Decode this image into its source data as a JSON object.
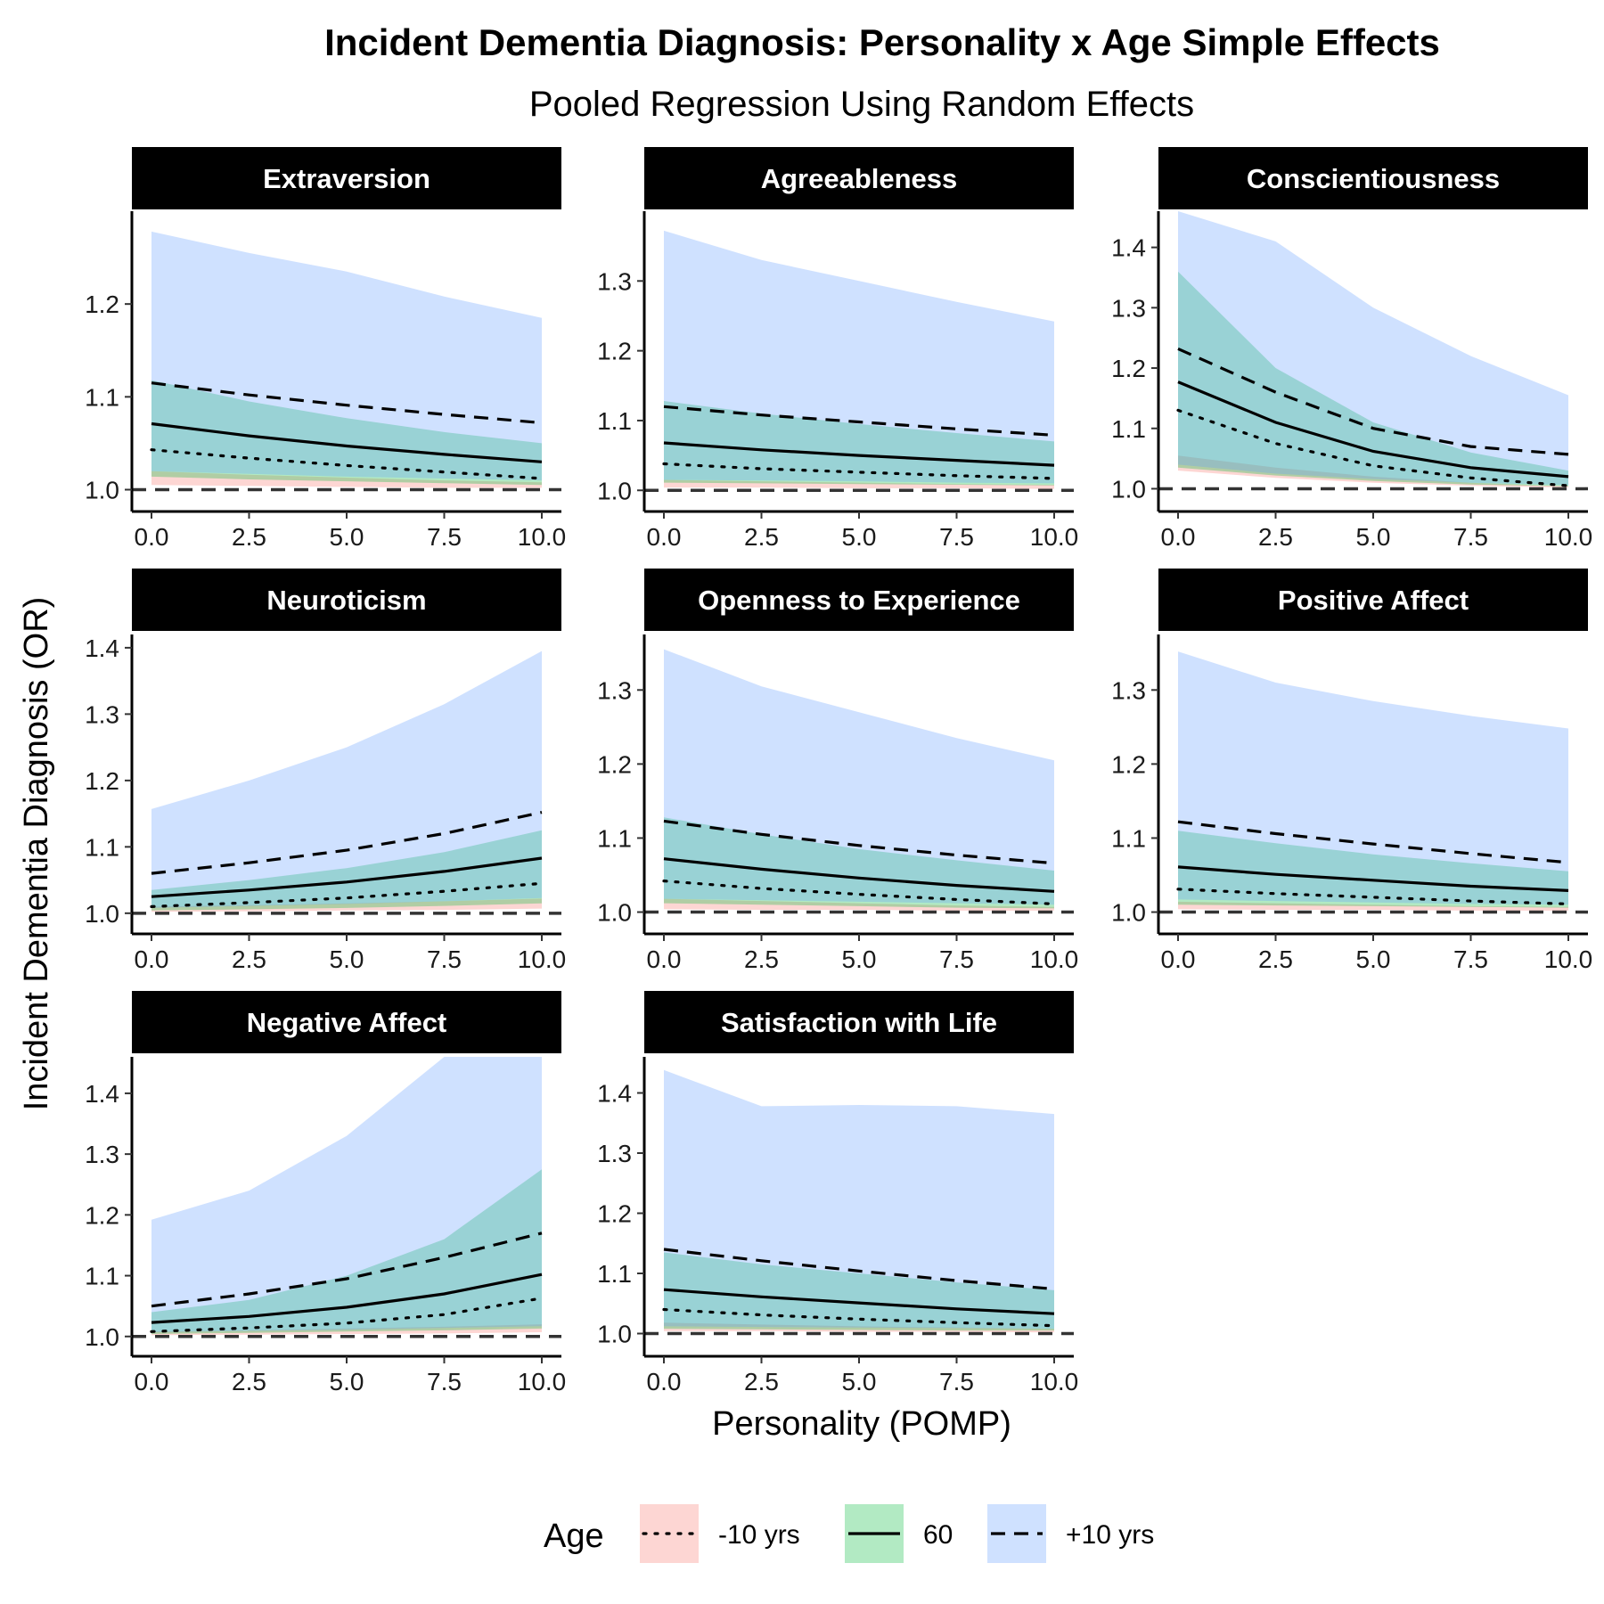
{
  "title": "Incident Dementia Diagnosis: Personality x Age Simple Effects",
  "subtitle": "Pooled Regression Using Random Effects",
  "x_axis_title": "Personality (POMP)",
  "y_axis_title": "Incident Dementia Diagnosis (OR)",
  "legend": {
    "title": "Age",
    "items": [
      {
        "label": "-10 yrs",
        "linetype": "dotted",
        "fill": "#f8766d"
      },
      {
        "label": "60",
        "linetype": "solid",
        "fill": "#00ba38"
      },
      {
        "label": "+10 yrs",
        "linetype": "dashed",
        "fill": "#619cff"
      }
    ]
  },
  "colors": {
    "ribbon_young": "#f8766d",
    "ribbon_mid": "#00ba38",
    "ribbon_old": "#619cff",
    "ribbon_opacity": 0.3,
    "strip_bg": "#000000",
    "reference_line": "#333333"
  },
  "chart_data": [
    {
      "type": "line",
      "facet": "Extraversion",
      "x": [
        0,
        2.5,
        5,
        7.5,
        10
      ],
      "xticks": [
        "0.0",
        "2.5",
        "5.0",
        "7.5",
        "10.0"
      ],
      "yticks": [
        "1.0",
        "1.1",
        "1.2"
      ],
      "ylim": [
        0.988,
        1.3
      ],
      "reference_y": 1.0,
      "series": [
        {
          "name": "-10 yrs",
          "values": [
            1.043,
            1.034,
            1.026,
            1.019,
            1.012
          ],
          "lower": [
            1.005,
            1.004,
            1.003,
            1.002,
            1.002
          ],
          "upper": [
            1.02,
            1.016,
            1.013,
            1.01,
            1.008
          ]
        },
        {
          "name": "60",
          "values": [
            1.071,
            1.058,
            1.047,
            1.038,
            1.03
          ],
          "lower": [
            1.014,
            1.011,
            1.009,
            1.007,
            1.005
          ],
          "upper": [
            1.118,
            1.095,
            1.077,
            1.062,
            1.05
          ]
        },
        {
          "name": "+10 yrs",
          "values": [
            1.115,
            1.102,
            1.091,
            1.081,
            1.072
          ],
          "lower": [
            1.02,
            1.017,
            1.014,
            1.012,
            1.01
          ],
          "upper": [
            1.278,
            1.255,
            1.235,
            1.208,
            1.185
          ]
        }
      ]
    },
    {
      "type": "line",
      "facet": "Agreeableness",
      "x": [
        0,
        2.5,
        5,
        7.5,
        10
      ],
      "xticks": [
        "0.0",
        "2.5",
        "5.0",
        "7.5",
        "10.0"
      ],
      "yticks": [
        "1.0",
        "1.1",
        "1.2",
        "1.3"
      ],
      "ylim": [
        0.985,
        1.4
      ],
      "reference_y": 1.0,
      "series": [
        {
          "name": "-10 yrs",
          "values": [
            1.038,
            1.031,
            1.026,
            1.021,
            1.017
          ],
          "lower": [
            1.004,
            1.004,
            1.003,
            1.003,
            1.002
          ],
          "upper": [
            1.015,
            1.013,
            1.011,
            1.009,
            1.008
          ]
        },
        {
          "name": "60",
          "values": [
            1.068,
            1.058,
            1.05,
            1.043,
            1.036
          ],
          "lower": [
            1.011,
            1.01,
            1.009,
            1.008,
            1.007
          ],
          "upper": [
            1.128,
            1.11,
            1.095,
            1.082,
            1.07
          ]
        },
        {
          "name": "+10 yrs",
          "values": [
            1.12,
            1.108,
            1.098,
            1.088,
            1.079
          ],
          "lower": [
            1.015,
            1.014,
            1.013,
            1.011,
            1.01
          ],
          "upper": [
            1.372,
            1.33,
            1.3,
            1.27,
            1.242
          ]
        }
      ]
    },
    {
      "type": "line",
      "facet": "Conscientiousness",
      "x": [
        0,
        2.5,
        5,
        7.5,
        10
      ],
      "xticks": [
        "0.0",
        "2.5",
        "5.0",
        "7.5",
        "10.0"
      ],
      "yticks": [
        "1.0",
        "1.1",
        "1.2",
        "1.3",
        "1.4"
      ],
      "ylim": [
        0.98,
        1.46
      ],
      "reference_y": 1.0,
      "series": [
        {
          "name": "-10 yrs",
          "values": [
            1.13,
            1.075,
            1.038,
            1.018,
            1.005
          ],
          "lower": [
            1.03,
            1.018,
            1.01,
            1.005,
            1.002
          ],
          "upper": [
            1.055,
            1.035,
            1.02,
            1.01,
            1.004
          ]
        },
        {
          "name": "60",
          "values": [
            1.177,
            1.11,
            1.062,
            1.035,
            1.02
          ],
          "lower": [
            1.035,
            1.022,
            1.013,
            1.007,
            1.004
          ],
          "upper": [
            1.36,
            1.2,
            1.11,
            1.06,
            1.03
          ]
        },
        {
          "name": "+10 yrs",
          "values": [
            1.232,
            1.16,
            1.1,
            1.07,
            1.057
          ],
          "lower": [
            1.04,
            1.025,
            1.016,
            1.01,
            1.006
          ],
          "upper": [
            1.46,
            1.41,
            1.3,
            1.22,
            1.155
          ]
        }
      ]
    },
    {
      "type": "line",
      "facet": "Neuroticism",
      "x": [
        0,
        2.5,
        5,
        7.5,
        10
      ],
      "xticks": [
        "0.0",
        "2.5",
        "5.0",
        "7.5",
        "10.0"
      ],
      "yticks": [
        "1.0",
        "1.1",
        "1.2",
        "1.3",
        "1.4"
      ],
      "ylim": [
        0.985,
        1.42
      ],
      "reference_y": 1.0,
      "series": [
        {
          "name": "-10 yrs",
          "values": [
            1.01,
            1.016,
            1.023,
            1.033,
            1.045
          ],
          "lower": [
            1.002,
            1.003,
            1.004,
            1.005,
            1.007
          ],
          "upper": [
            1.01,
            1.012,
            1.015,
            1.018,
            1.022
          ]
        },
        {
          "name": "60",
          "values": [
            1.025,
            1.035,
            1.047,
            1.063,
            1.083
          ],
          "lower": [
            1.004,
            1.006,
            1.008,
            1.011,
            1.015
          ],
          "upper": [
            1.035,
            1.05,
            1.068,
            1.092,
            1.125
          ]
        },
        {
          "name": "+10 yrs",
          "values": [
            1.06,
            1.076,
            1.095,
            1.12,
            1.152
          ],
          "lower": [
            1.008,
            1.011,
            1.014,
            1.018,
            1.023
          ],
          "upper": [
            1.157,
            1.2,
            1.25,
            1.315,
            1.395
          ]
        }
      ]
    },
    {
      "type": "line",
      "facet": "Openness to Experience",
      "x": [
        0,
        2.5,
        5,
        7.5,
        10
      ],
      "xticks": [
        "0.0",
        "2.5",
        "5.0",
        "7.5",
        "10.0"
      ],
      "yticks": [
        "1.0",
        "1.1",
        "1.2",
        "1.3"
      ],
      "ylim": [
        0.985,
        1.375
      ],
      "reference_y": 1.0,
      "series": [
        {
          "name": "-10 yrs",
          "values": [
            1.042,
            1.032,
            1.024,
            1.017,
            1.011
          ],
          "lower": [
            1.004,
            1.003,
            1.003,
            1.002,
            1.002
          ],
          "upper": [
            1.018,
            1.015,
            1.012,
            1.009,
            1.007
          ]
        },
        {
          "name": "60",
          "values": [
            1.072,
            1.058,
            1.046,
            1.036,
            1.028
          ],
          "lower": [
            1.012,
            1.01,
            1.008,
            1.006,
            1.005
          ],
          "upper": [
            1.128,
            1.105,
            1.085,
            1.07,
            1.056
          ]
        },
        {
          "name": "+10 yrs",
          "values": [
            1.123,
            1.105,
            1.09,
            1.077,
            1.066
          ],
          "lower": [
            1.018,
            1.016,
            1.014,
            1.012,
            1.01
          ],
          "upper": [
            1.355,
            1.305,
            1.27,
            1.235,
            1.205
          ]
        }
      ]
    },
    {
      "type": "line",
      "facet": "Positive Affect",
      "x": [
        0,
        2.5,
        5,
        7.5,
        10
      ],
      "xticks": [
        "0.0",
        "2.5",
        "5.0",
        "7.5",
        "10.0"
      ],
      "yticks": [
        "1.0",
        "1.1",
        "1.2",
        "1.3"
      ],
      "ylim": [
        0.985,
        1.375
      ],
      "reference_y": 1.0,
      "series": [
        {
          "name": "-10 yrs",
          "values": [
            1.031,
            1.025,
            1.02,
            1.015,
            1.011
          ],
          "lower": [
            1.004,
            1.003,
            1.003,
            1.002,
            1.002
          ],
          "upper": [
            1.014,
            1.012,
            1.01,
            1.008,
            1.007
          ]
        },
        {
          "name": "60",
          "values": [
            1.061,
            1.051,
            1.043,
            1.035,
            1.029
          ],
          "lower": [
            1.01,
            1.009,
            1.008,
            1.007,
            1.006
          ],
          "upper": [
            1.11,
            1.093,
            1.078,
            1.066,
            1.055
          ]
        },
        {
          "name": "+10 yrs",
          "values": [
            1.122,
            1.106,
            1.092,
            1.079,
            1.067
          ],
          "lower": [
            1.017,
            1.015,
            1.013,
            1.011,
            1.01
          ],
          "upper": [
            1.352,
            1.31,
            1.285,
            1.265,
            1.248
          ]
        }
      ]
    },
    {
      "type": "line",
      "facet": "Negative Affect",
      "x": [
        0,
        2.5,
        5,
        7.5,
        10
      ],
      "xticks": [
        "0.0",
        "2.5",
        "5.0",
        "7.5",
        "10.0"
      ],
      "yticks": [
        "1.0",
        "1.1",
        "1.2",
        "1.3",
        "1.4"
      ],
      "ylim": [
        0.985,
        1.46
      ],
      "reference_y": 1.0,
      "series": [
        {
          "name": "-10 yrs",
          "values": [
            1.008,
            1.014,
            1.022,
            1.036,
            1.063
          ],
          "lower": [
            1.002,
            1.003,
            1.004,
            1.005,
            1.007
          ],
          "upper": [
            1.008,
            1.01,
            1.013,
            1.016,
            1.02
          ]
        },
        {
          "name": "60",
          "values": [
            1.023,
            1.033,
            1.048,
            1.07,
            1.102
          ],
          "lower": [
            1.004,
            1.006,
            1.008,
            1.01,
            1.013
          ],
          "upper": [
            1.04,
            1.06,
            1.1,
            1.16,
            1.275
          ]
        },
        {
          "name": "+10 yrs",
          "values": [
            1.05,
            1.07,
            1.095,
            1.13,
            1.17
          ],
          "lower": [
            1.007,
            1.009,
            1.011,
            1.014,
            1.017
          ],
          "upper": [
            1.192,
            1.24,
            1.33,
            1.46,
            1.46
          ]
        }
      ]
    },
    {
      "type": "line",
      "facet": "Satisfaction with Life",
      "x": [
        0,
        2.5,
        5,
        7.5,
        10
      ],
      "xticks": [
        "0.0",
        "2.5",
        "5.0",
        "7.5",
        "10.0"
      ],
      "yticks": [
        "1.0",
        "1.1",
        "1.2",
        "1.3",
        "1.4"
      ],
      "ylim": [
        0.98,
        1.46
      ],
      "reference_y": 1.0,
      "series": [
        {
          "name": "-10 yrs",
          "values": [
            1.04,
            1.031,
            1.024,
            1.018,
            1.013
          ],
          "lower": [
            1.004,
            1.004,
            1.003,
            1.003,
            1.002
          ],
          "upper": [
            1.018,
            1.015,
            1.012,
            1.01,
            1.008
          ]
        },
        {
          "name": "60",
          "values": [
            1.073,
            1.061,
            1.051,
            1.041,
            1.033
          ],
          "lower": [
            1.008,
            1.007,
            1.006,
            1.005,
            1.005
          ],
          "upper": [
            1.135,
            1.115,
            1.1,
            1.085,
            1.072
          ]
        },
        {
          "name": "+10 yrs",
          "values": [
            1.14,
            1.121,
            1.104,
            1.088,
            1.074
          ],
          "lower": [
            1.012,
            1.011,
            1.01,
            1.009,
            1.008
          ],
          "upper": [
            1.438,
            1.378,
            1.38,
            1.378,
            1.365
          ]
        }
      ]
    }
  ]
}
